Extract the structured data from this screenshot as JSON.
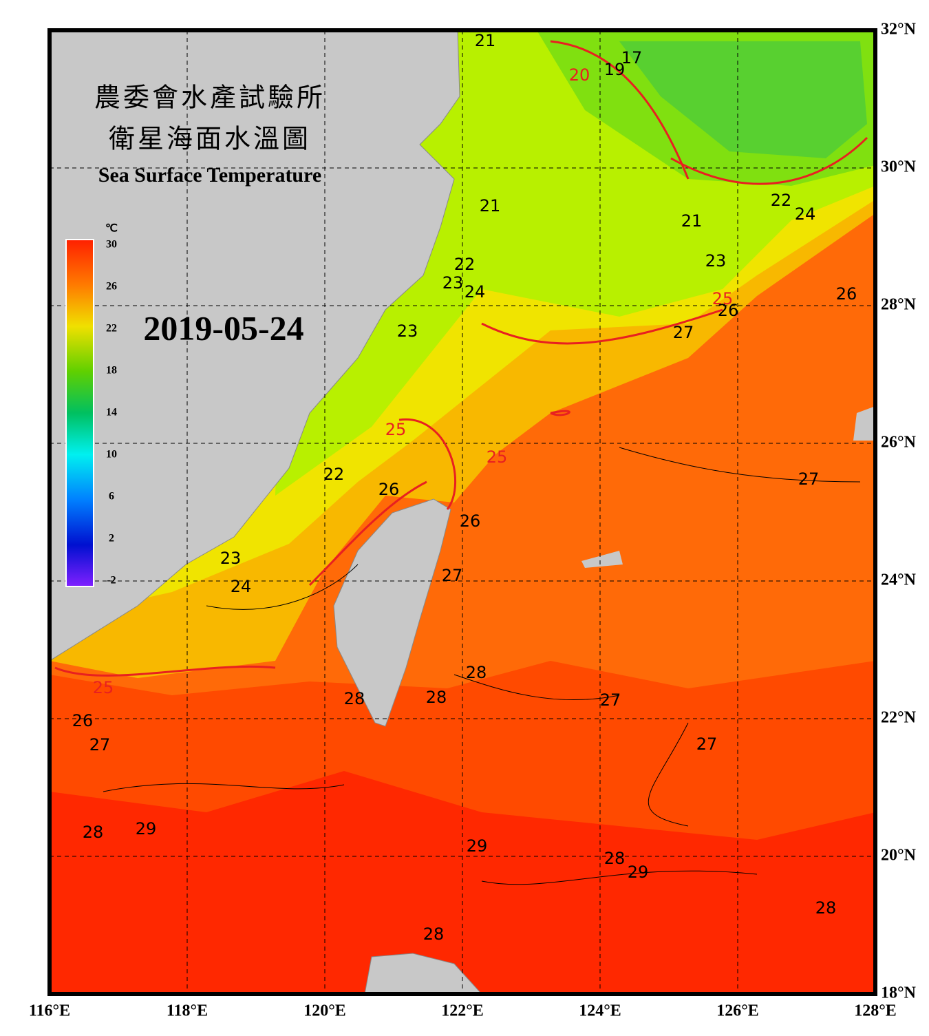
{
  "title_zh_1": "農委會水產試驗所",
  "title_zh_2": "衛星海面水溫圖",
  "title_en": "Sea Surface Temperature",
  "date": "2019-05-24",
  "colorbar": {
    "unit": "℃",
    "labels": [
      30,
      26,
      22,
      18,
      14,
      10,
      6,
      2,
      -2
    ]
  },
  "lon_labels": [
    "116°E",
    "118°E",
    "120°E",
    "122°E",
    "124°E",
    "126°E",
    "128°E"
  ],
  "lat_labels": [
    "32°N",
    "30°N",
    "28°N",
    "26°N",
    "24°N",
    "22°N",
    "20°N",
    "18°N"
  ],
  "contour_labels": [
    21,
    17,
    19,
    20,
    21,
    22,
    24,
    21,
    23,
    22,
    23,
    24,
    25,
    26,
    26,
    23,
    27,
    25,
    25,
    22,
    26,
    27,
    26,
    23,
    24,
    27,
    28,
    28,
    27,
    28,
    25,
    26,
    27,
    27,
    28,
    29,
    29,
    28,
    29,
    28,
    28
  ]
}
